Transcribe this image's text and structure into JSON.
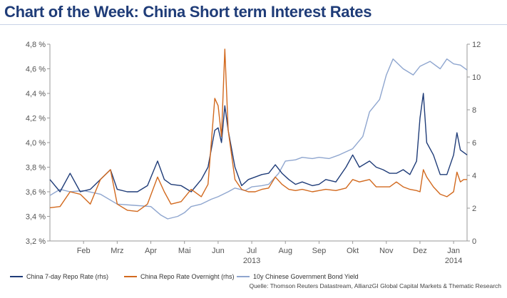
{
  "title": "Chart of the Week: China Short term Interest Rates",
  "source": "Quelle: Thomson Reuters Datastream, AllianzGI Global Capital Markets & Thematic Research",
  "colors": {
    "repo7d": "#1f3c78",
    "overnight": "#d2691e",
    "bond": "#8fa6cf",
    "title": "#1f3c78"
  },
  "chart_data": {
    "type": "line",
    "title": "Chart of the Week: China Short term Interest Rates",
    "y_left": {
      "ticks": [
        "3,2 %",
        "3,4 %",
        "3,6 %",
        "3,8 %",
        "4,0 %",
        "4,2 %",
        "4,4 %",
        "4,6 %",
        "4,8 %"
      ],
      "range": [
        3.2,
        4.8
      ]
    },
    "y_right": {
      "ticks": [
        "0",
        "2",
        "4",
        "6",
        "8",
        "10",
        "12"
      ],
      "range": [
        0,
        12
      ]
    },
    "x_range": [
      0,
      12.4
    ],
    "x_ticks": [
      {
        "pos": 1,
        "label": "Feb"
      },
      {
        "pos": 2,
        "label": "Mrz"
      },
      {
        "pos": 3,
        "label": "Apr"
      },
      {
        "pos": 4,
        "label": "Mai"
      },
      {
        "pos": 5,
        "label": "Jun"
      },
      {
        "pos": 6,
        "label": "Jul"
      },
      {
        "pos": 7,
        "label": "Aug"
      },
      {
        "pos": 8,
        "label": "Sep"
      },
      {
        "pos": 9,
        "label": "Okt"
      },
      {
        "pos": 10,
        "label": "Nov"
      },
      {
        "pos": 11,
        "label": "Dez"
      },
      {
        "pos": 12,
        "label": "Jan"
      }
    ],
    "year_labels": [
      {
        "pos": 6,
        "label": "2013"
      },
      {
        "pos": 12,
        "label": "2014"
      }
    ],
    "grid": false,
    "legend_position": "bottom",
    "series": [
      {
        "name": "10y Chinese Government Bond Yield",
        "axis": "left",
        "color": "#8fa6cf",
        "x": [
          0,
          0.3,
          0.6,
          1.0,
          1.5,
          2.0,
          2.5,
          3.0,
          3.3,
          3.5,
          3.8,
          4.0,
          4.2,
          4.5,
          4.8,
          5.0,
          5.3,
          5.5,
          5.8,
          6.0,
          6.3,
          6.5,
          6.8,
          7.0,
          7.3,
          7.5,
          7.8,
          8.0,
          8.3,
          8.6,
          9.0,
          9.3,
          9.5,
          9.8,
          10.0,
          10.2,
          10.5,
          10.8,
          11.0,
          11.3,
          11.6,
          11.8,
          12.0,
          12.2,
          12.4
        ],
        "values": [
          3.57,
          3.62,
          3.6,
          3.61,
          3.58,
          3.5,
          3.49,
          3.48,
          3.41,
          3.38,
          3.4,
          3.43,
          3.48,
          3.5,
          3.54,
          3.56,
          3.6,
          3.63,
          3.61,
          3.64,
          3.65,
          3.66,
          3.75,
          3.85,
          3.86,
          3.88,
          3.87,
          3.88,
          3.87,
          3.9,
          3.95,
          4.05,
          4.25,
          4.35,
          4.55,
          4.68,
          4.6,
          4.55,
          4.62,
          4.66,
          4.6,
          4.68,
          4.64,
          4.63,
          4.59
        ]
      },
      {
        "name": "China 7-day Repo Rate (rhs)",
        "axis": "right",
        "color": "#1f3c78",
        "x": [
          0,
          0.3,
          0.6,
          0.9,
          1.2,
          1.5,
          1.8,
          2.0,
          2.3,
          2.6,
          2.9,
          3.2,
          3.4,
          3.6,
          3.9,
          4.2,
          4.5,
          4.7,
          4.9,
          5.0,
          5.1,
          5.2,
          5.3,
          5.5,
          5.7,
          5.9,
          6.1,
          6.3,
          6.5,
          6.7,
          6.9,
          7.1,
          7.3,
          7.5,
          7.8,
          8.0,
          8.2,
          8.5,
          8.8,
          9.0,
          9.2,
          9.5,
          9.7,
          9.9,
          10.1,
          10.3,
          10.5,
          10.7,
          10.9,
          11.0,
          11.1,
          11.2,
          11.4,
          11.6,
          11.8,
          12.0,
          12.1,
          12.2,
          12.3,
          12.4
        ],
        "values": [
          3.7,
          3.6,
          3.75,
          3.6,
          3.62,
          3.7,
          3.78,
          3.62,
          3.6,
          3.6,
          3.65,
          3.85,
          3.7,
          3.66,
          3.65,
          3.6,
          3.7,
          3.8,
          4.1,
          4.12,
          4.0,
          4.3,
          4.1,
          3.8,
          3.65,
          3.7,
          3.72,
          3.74,
          3.75,
          3.82,
          3.75,
          3.7,
          3.66,
          3.68,
          3.65,
          3.66,
          3.7,
          3.68,
          3.8,
          3.9,
          3.8,
          3.85,
          3.8,
          3.78,
          3.75,
          3.75,
          3.78,
          3.74,
          3.85,
          4.2,
          4.4,
          4.0,
          3.9,
          3.74,
          3.74,
          3.9,
          4.08,
          3.94,
          3.92,
          3.9
        ]
      },
      {
        "name": "China Repo Rate Overnight (rhs)",
        "axis": "right",
        "color": "#d2691e",
        "x": [
          0,
          0.3,
          0.6,
          0.9,
          1.2,
          1.5,
          1.8,
          2.0,
          2.3,
          2.6,
          2.9,
          3.2,
          3.4,
          3.6,
          3.9,
          4.2,
          4.5,
          4.7,
          4.9,
          5.0,
          5.1,
          5.2,
          5.3,
          5.5,
          5.7,
          5.9,
          6.1,
          6.3,
          6.5,
          6.7,
          6.9,
          7.1,
          7.3,
          7.5,
          7.8,
          8.0,
          8.2,
          8.5,
          8.8,
          9.0,
          9.2,
          9.5,
          9.7,
          9.9,
          10.1,
          10.3,
          10.5,
          10.7,
          10.9,
          11.0,
          11.1,
          11.2,
          11.4,
          11.6,
          11.8,
          12.0,
          12.1,
          12.2,
          12.3,
          12.4
        ],
        "values": [
          3.47,
          3.48,
          3.6,
          3.58,
          3.5,
          3.7,
          3.78,
          3.5,
          3.45,
          3.44,
          3.5,
          3.72,
          3.6,
          3.5,
          3.52,
          3.62,
          3.56,
          3.66,
          4.36,
          4.3,
          4.05,
          4.76,
          4.1,
          3.7,
          3.62,
          3.6,
          3.6,
          3.62,
          3.63,
          3.72,
          3.66,
          3.62,
          3.61,
          3.62,
          3.6,
          3.61,
          3.62,
          3.61,
          3.63,
          3.7,
          3.68,
          3.7,
          3.64,
          3.64,
          3.64,
          3.68,
          3.64,
          3.62,
          3.61,
          3.6,
          3.78,
          3.72,
          3.64,
          3.58,
          3.56,
          3.6,
          3.76,
          3.68,
          3.7,
          3.7
        ]
      }
    ]
  },
  "legend": [
    {
      "label": "China 7-day Repo Rate (rhs)",
      "color": "#1f3c78"
    },
    {
      "label": "China Repo Rate Overnight (rhs)",
      "color": "#d2691e"
    },
    {
      "label": "10y Chinese Government Bond Yield",
      "color": "#8fa6cf"
    }
  ]
}
